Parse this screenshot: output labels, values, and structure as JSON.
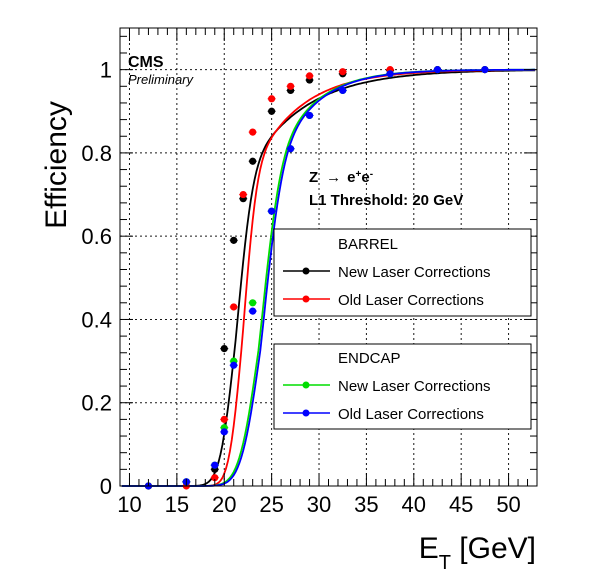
{
  "chart_data": {
    "type": "line",
    "title": "",
    "xlabel": "E",
    "xlabel_sub": "T",
    "xlabel_unit": " [GeV]",
    "ylabel": "Efficiency",
    "xlim": [
      9,
      53
    ],
    "ylim": [
      0,
      1.1
    ],
    "grid": true,
    "x_ticks": [
      "10",
      "15",
      "20",
      "25",
      "30",
      "35",
      "40",
      "45",
      "50"
    ],
    "y_ticks": [
      "0",
      "0.2",
      "0.4",
      "0.6",
      "0.8",
      "1"
    ],
    "experiment": "CMS",
    "status": "Preliminary",
    "annotation_process": "Z",
    "annotation_arrow": "→",
    "annotation_e1": "e",
    "annotation_sup1": "+",
    "annotation_e2": "e",
    "annotation_sup2": "-",
    "annotation_threshold": "L1 Threshold: 20 GeV",
    "legends": [
      {
        "header": "BARREL",
        "entries": [
          "New Laser Corrections",
          "Old Laser Corrections"
        ],
        "placement": "right-middle"
      },
      {
        "header": "ENDCAP",
        "entries": [
          "New Laser Corrections",
          "Old Laser Corrections"
        ],
        "placement": "right-lower"
      }
    ],
    "series": [
      {
        "name": "New Laser Corrections",
        "group": "BARREL",
        "color": "#000000",
        "fit": {
          "mu": 21.2,
          "sigma": 1.3,
          "tail": 6.0,
          "k": 0.3
        },
        "x": [
          12,
          16,
          19,
          20,
          21,
          22,
          23,
          25,
          27,
          29,
          32.5,
          37.5,
          42.5,
          47.5
        ],
        "y": [
          0.0,
          0.01,
          0.04,
          0.33,
          0.59,
          0.69,
          0.78,
          0.9,
          0.95,
          0.975,
          0.99,
          0.998,
          1.0,
          1.0
        ]
      },
      {
        "name": "Old Laser Corrections",
        "group": "BARREL",
        "color": "#ff0000",
        "fit": {
          "mu": 21.9,
          "sigma": 1.1,
          "tail": 5.0,
          "k": 0.3
        },
        "x": [
          12,
          16,
          19,
          20,
          21,
          22,
          23,
          25,
          27,
          29,
          32.5,
          37.5,
          42.5,
          47.5
        ],
        "y": [
          0.0,
          0.0,
          0.02,
          0.16,
          0.43,
          0.7,
          0.85,
          0.93,
          0.96,
          0.985,
          0.995,
          1.0,
          1.0,
          1.0
        ]
      },
      {
        "name": "New Laser Corrections",
        "group": "ENDCAP",
        "color": "#00dd00",
        "fit": {
          "mu": 23.6,
          "sigma": 1.6,
          "tail": 4.0,
          "k": 0.35
        },
        "x": [
          12,
          16,
          19,
          20,
          21,
          23,
          25,
          27,
          29,
          32.5,
          37.5,
          42.5,
          47.5
        ],
        "y": [
          0.0,
          0.01,
          0.05,
          0.14,
          0.3,
          0.44,
          0.66,
          0.81,
          0.89,
          0.95,
          0.99,
          1.0,
          1.0
        ]
      },
      {
        "name": "Old Laser Corrections",
        "group": "ENDCAP",
        "color": "#0000ff",
        "fit": {
          "mu": 23.8,
          "sigma": 1.6,
          "tail": 4.0,
          "k": 0.35
        },
        "x": [
          12,
          16,
          19,
          20,
          21,
          23,
          25,
          27,
          29,
          32.5,
          37.5,
          42.5,
          47.5
        ],
        "y": [
          0.0,
          0.01,
          0.05,
          0.13,
          0.29,
          0.42,
          0.66,
          0.81,
          0.89,
          0.95,
          0.99,
          1.0,
          1.0
        ]
      }
    ]
  }
}
